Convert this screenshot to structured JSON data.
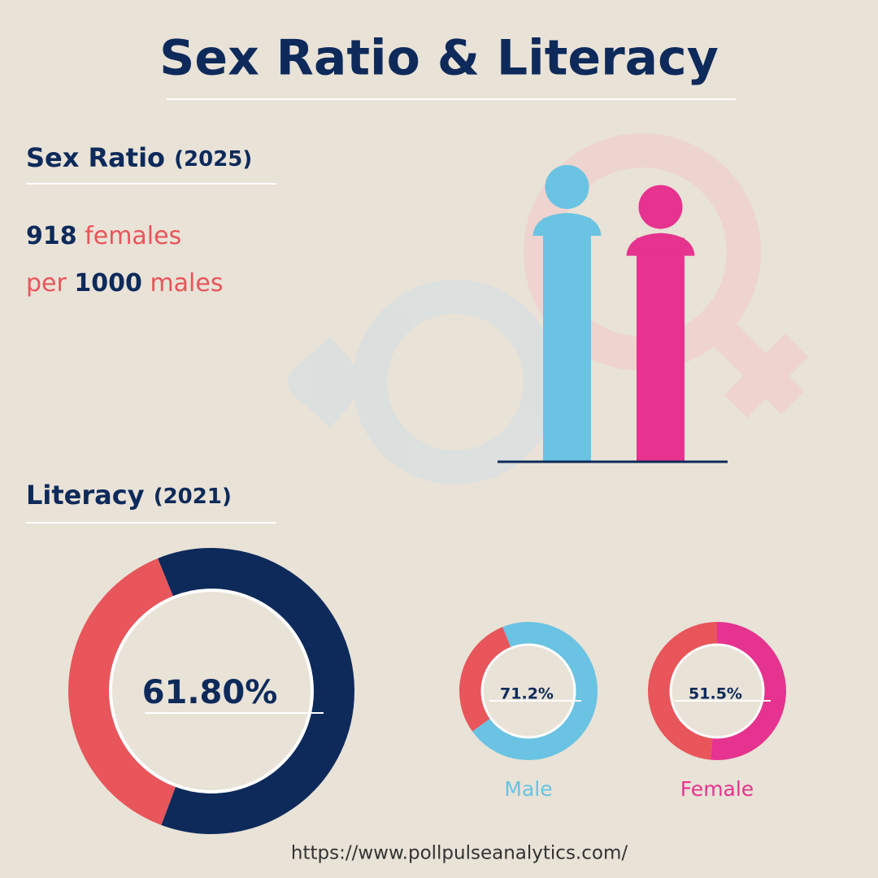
{
  "title": "Sex Ratio & Literacy",
  "sex_ratio": {
    "heading": "Sex Ratio",
    "year": "(2025)",
    "females": 918,
    "females_label": "females",
    "per": "per",
    "males": 1000,
    "males_label": "males",
    "male_color": "#6ac3e2",
    "female_color": "#e6338f"
  },
  "literacy": {
    "heading": "Literacy",
    "year": "(2021)"
  },
  "chart_data": [
    {
      "type": "donut",
      "values": [
        61.8,
        38.2
      ],
      "value_labels": [
        "61.80%",
        null
      ],
      "colors": [
        "#0d2a5a",
        "#e8555a"
      ]
    },
    {
      "type": "donut",
      "label": "Male",
      "label_color": "#6ac3e2",
      "values": [
        71.2,
        28.8
      ],
      "value_labels": [
        "71.2%",
        null
      ],
      "colors": [
        "#6ac3e2",
        "#e8555a"
      ]
    },
    {
      "type": "donut",
      "label": "Female",
      "label_color": "#e6338f",
      "values": [
        51.5,
        48.5
      ],
      "value_labels": [
        "51.5%",
        null
      ],
      "colors": [
        "#e6338f",
        "#e8555a"
      ]
    }
  ],
  "footer": "https://www.pollpulseanalytics.com/"
}
